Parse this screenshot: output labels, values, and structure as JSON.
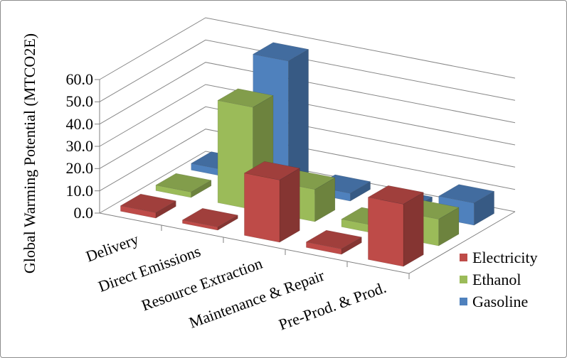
{
  "chart_data": {
    "type": "bar",
    "style": "3d-clustered-column",
    "title": "",
    "ylabel": "Global Warming Potential (MTCO2E)",
    "xlabel": "",
    "ylim": [
      0,
      60
    ],
    "ytick_step": 10,
    "ytick_labels": [
      "0.0",
      "10.0",
      "20.0",
      "30.0",
      "40.0",
      "50.0",
      "60.0"
    ],
    "categories": [
      "Delivery",
      "Direct Emissions",
      "Resource Extraction",
      "Maintenance & Repair",
      "Pre-Prod. & Prod."
    ],
    "series": [
      {
        "name": "Electricity",
        "color": "#BE4B48",
        "values": [
          2.5,
          1.5,
          28,
          2.5,
          28
        ]
      },
      {
        "name": "Ethanol",
        "color": "#9BBB59",
        "values": [
          2.5,
          46,
          14.5,
          3.5,
          12
        ]
      },
      {
        "name": "Gasoline",
        "color": "#4F81BD",
        "values": [
          3,
          57.5,
          3.5,
          2,
          10
        ]
      }
    ],
    "legend_position": "right",
    "grid": true,
    "gridline_color": "#878787",
    "axis_color": "#808080",
    "text_color": "#000000",
    "background_color": "#FFFFFF",
    "border_color": "#8C8C8C"
  }
}
